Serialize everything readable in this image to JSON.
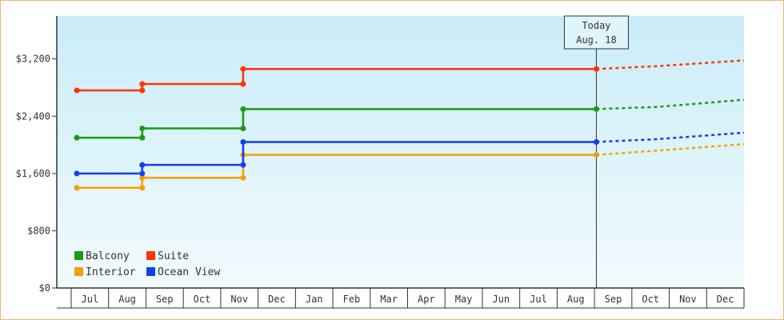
{
  "chart_data": {
    "type": "line",
    "y_ticks": [
      "$0",
      "$800",
      "$1,600",
      "$2,400",
      "$3,200"
    ],
    "ylim": [
      0,
      3800
    ],
    "x_months": [
      "Jul",
      "Aug",
      "Sep",
      "Oct",
      "Nov",
      "Dec",
      "Jan",
      "Feb",
      "Mar",
      "Apr",
      "May",
      "Jun",
      "Jul",
      "Aug",
      "Sep",
      "Oct",
      "Nov",
      "Dec"
    ],
    "today": {
      "line1": "Today",
      "line2": "Aug. 18",
      "x_month_index": 13.55
    },
    "grid": false,
    "legend_placement": "bottom-left",
    "series": [
      {
        "name": "Balcony",
        "color": "#1a9a1a",
        "steps": [
          [
            -0.35,
            2100
          ],
          [
            1.4,
            2100
          ],
          [
            1.4,
            2230
          ],
          [
            4.1,
            2230
          ],
          [
            4.1,
            2500
          ],
          [
            13.55,
            2500
          ]
        ],
        "markers": [
          [
            -0.35,
            2100
          ],
          [
            1.4,
            2100
          ],
          [
            1.4,
            2230
          ],
          [
            4.1,
            2230
          ],
          [
            4.1,
            2500
          ],
          [
            13.55,
            2500
          ]
        ],
        "forecast": [
          [
            13.55,
            2500
          ],
          [
            15.2,
            2530
          ],
          [
            17.6,
            2630
          ]
        ]
      },
      {
        "name": "Suite",
        "color": "#ff3300",
        "steps": [
          [
            -0.35,
            2760
          ],
          [
            1.4,
            2760
          ],
          [
            1.4,
            2850
          ],
          [
            4.1,
            2850
          ],
          [
            4.1,
            3060
          ],
          [
            13.55,
            3060
          ]
        ],
        "markers": [
          [
            -0.35,
            2760
          ],
          [
            1.4,
            2760
          ],
          [
            1.4,
            2850
          ],
          [
            4.1,
            2850
          ],
          [
            4.1,
            3060
          ],
          [
            13.55,
            3060
          ]
        ],
        "forecast": [
          [
            13.55,
            3060
          ],
          [
            15.2,
            3100
          ],
          [
            17.6,
            3180
          ]
        ]
      },
      {
        "name": "Interior",
        "color": "#f5a000",
        "steps": [
          [
            -0.35,
            1400
          ],
          [
            1.4,
            1400
          ],
          [
            1.4,
            1540
          ],
          [
            4.1,
            1540
          ],
          [
            4.1,
            1860
          ],
          [
            13.55,
            1860
          ]
        ],
        "markers": [
          [
            -0.35,
            1400
          ],
          [
            1.4,
            1400
          ],
          [
            1.4,
            1540
          ],
          [
            4.1,
            1540
          ],
          [
            4.1,
            1860
          ],
          [
            13.55,
            1860
          ]
        ],
        "forecast": [
          [
            13.55,
            1860
          ],
          [
            15.2,
            1920
          ],
          [
            17.6,
            2010
          ]
        ]
      },
      {
        "name": "Ocean View",
        "color": "#1040ee",
        "steps": [
          [
            -0.35,
            1600
          ],
          [
            1.4,
            1600
          ],
          [
            1.4,
            1720
          ],
          [
            4.1,
            1720
          ],
          [
            4.1,
            2040
          ],
          [
            13.55,
            2040
          ]
        ],
        "markers": [
          [
            -0.35,
            1600
          ],
          [
            1.4,
            1600
          ],
          [
            1.4,
            1720
          ],
          [
            4.1,
            1720
          ],
          [
            4.1,
            2040
          ],
          [
            13.55,
            2040
          ]
        ],
        "forecast": [
          [
            13.55,
            2040
          ],
          [
            15.2,
            2080
          ],
          [
            17.6,
            2170
          ]
        ]
      }
    ],
    "legend_order": [
      "Balcony",
      "Suite",
      "Interior",
      "Ocean View"
    ]
  },
  "colors": {
    "plot_top": "#c9ecf8",
    "plot_bottom": "#f2fbfe",
    "frame": "#e8b878",
    "axis": "#333333"
  }
}
